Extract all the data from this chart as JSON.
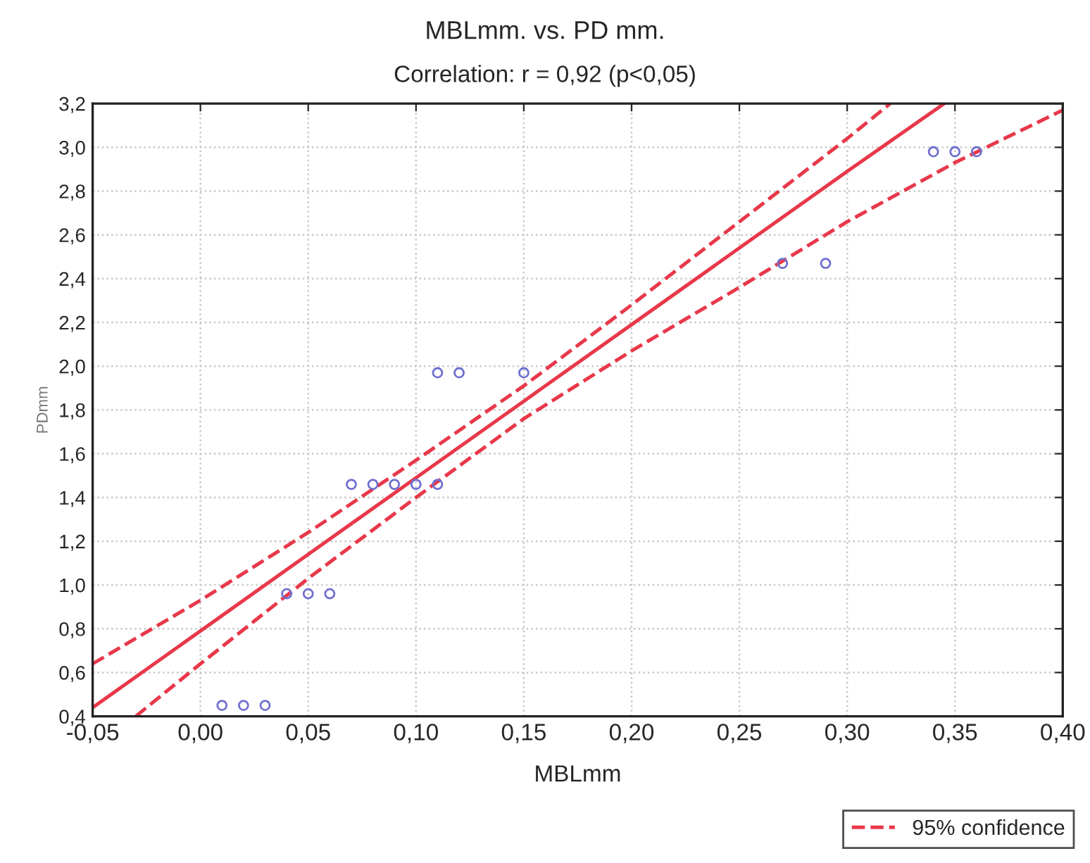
{
  "chart_data": {
    "type": "scatter",
    "title": "MBLmm. vs. PD mm.",
    "subtitle": "Correlation: r = 0,92 (p<0,05)",
    "xlabel": "MBLmm",
    "ylabel": "PDmm",
    "series": [
      {
        "color": "#7070d0",
        "marker": "circle",
        "x": [
          0.01,
          0.02,
          0.03,
          0.04,
          0.05,
          0.06,
          0.07,
          0.08,
          0.09,
          0.1,
          0.11,
          0.11,
          0.12,
          0.15,
          0.27,
          0.29,
          0.34,
          0.35,
          0.36
        ],
        "values": [
          0.45,
          0.45,
          0.45,
          0.96,
          0.96,
          0.96,
          1.46,
          1.46,
          1.46,
          1.46,
          1.46,
          1.97,
          1.97,
          1.97,
          2.47,
          2.47,
          2.98,
          2.98,
          2.98
        ]
      },
      {
        "type": "line",
        "color": "#e8384a",
        "line_style": "solid",
        "x": [
          -0.05,
          0.0,
          0.05,
          0.1,
          0.15,
          0.2,
          0.25,
          0.3,
          0.345
        ],
        "values": [
          0.44,
          0.79,
          1.14,
          1.49,
          1.84,
          2.19,
          2.54,
          2.89,
          3.2
        ]
      },
      {
        "type": "line",
        "name": "95% confidence",
        "color": "#e8384a",
        "line_style": "dashed",
        "x": [
          -0.05,
          0.0,
          0.05,
          0.1,
          0.15,
          0.2,
          0.25,
          0.3,
          0.32
        ],
        "values": [
          0.64,
          0.93,
          1.24,
          1.57,
          1.91,
          2.28,
          2.66,
          3.04,
          3.2
        ]
      },
      {
        "type": "line",
        "color": "#e8384a",
        "line_style": "dashed",
        "x": [
          -0.03,
          0.0,
          0.05,
          0.1,
          0.15,
          0.2,
          0.25,
          0.3,
          0.35,
          0.4
        ],
        "values": [
          0.4,
          0.64,
          1.03,
          1.4,
          1.76,
          2.07,
          2.36,
          2.66,
          2.93,
          3.17
        ]
      }
    ],
    "xlim": [
      -0.05,
      0.4
    ],
    "xticks": [
      {
        "value": -0.05,
        "label": "-0,05"
      },
      {
        "value": 0.0,
        "label": "0,00"
      },
      {
        "value": 0.05,
        "label": "0,05"
      },
      {
        "value": 0.1,
        "label": "0,10"
      },
      {
        "value": 0.15,
        "label": "0,15"
      },
      {
        "value": 0.2,
        "label": "0,20"
      },
      {
        "value": 0.25,
        "label": "0,25"
      },
      {
        "value": 0.3,
        "label": "0,30"
      },
      {
        "value": 0.35,
        "label": "0,35"
      },
      {
        "value": 0.4,
        "label": "0,40"
      }
    ],
    "ylim": [
      0.4,
      3.2
    ],
    "yticks": [
      {
        "value": 0.4,
        "label": "0,4"
      },
      {
        "value": 0.6,
        "label": "0,6"
      },
      {
        "value": 0.8,
        "label": "0,8"
      },
      {
        "value": 1.0,
        "label": "1,0"
      },
      {
        "value": 1.2,
        "label": "1,2"
      },
      {
        "value": 1.4,
        "label": "1,4"
      },
      {
        "value": 1.6,
        "label": "1,6"
      },
      {
        "value": 1.8,
        "label": "1,8"
      },
      {
        "value": 2.0,
        "label": "2,0"
      },
      {
        "value": 2.2,
        "label": "2,2"
      },
      {
        "value": 2.4,
        "label": "2,4"
      },
      {
        "value": 2.6,
        "label": "2,6"
      },
      {
        "value": 2.8,
        "label": "2,8"
      },
      {
        "value": 3.0,
        "label": "3,0"
      },
      {
        "value": 3.2,
        "label": "3,2"
      }
    ],
    "grid": true,
    "legend": "bottom right"
  }
}
